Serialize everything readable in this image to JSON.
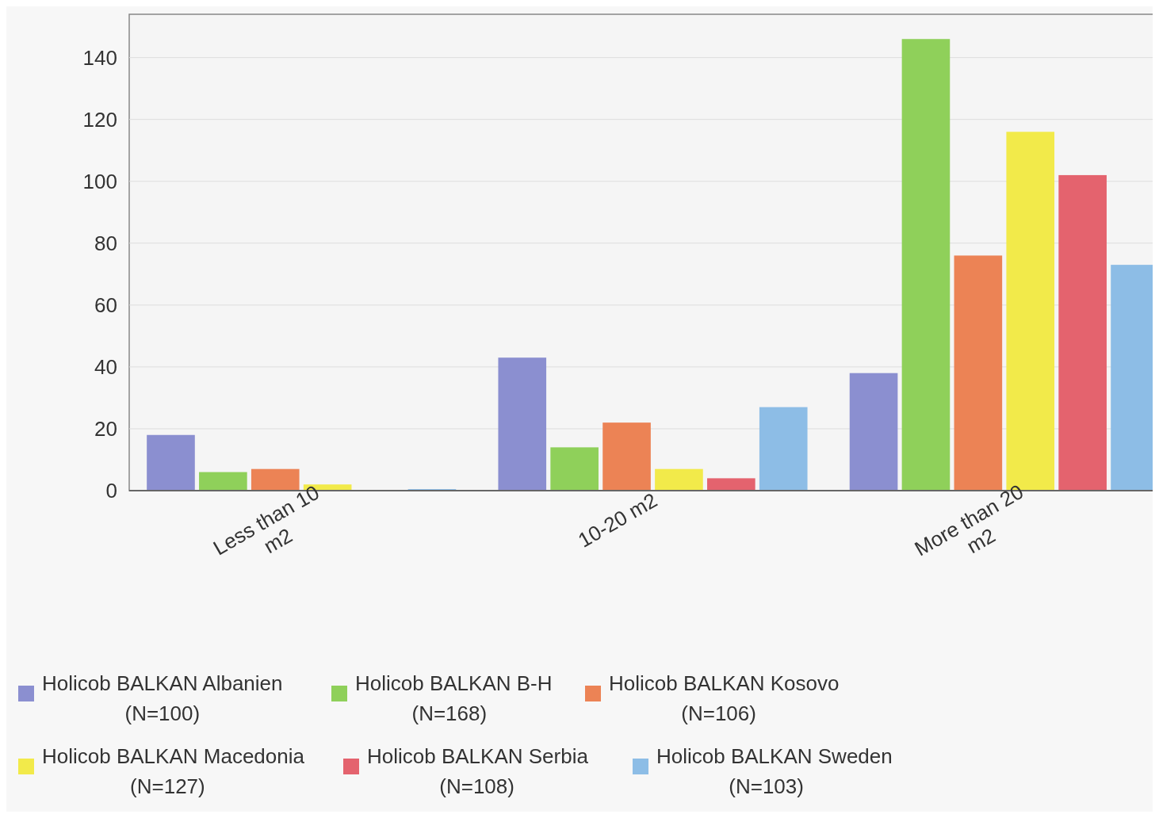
{
  "chart_data": {
    "type": "bar",
    "categories": [
      "Less than 10 m2",
      "10-20 m2",
      "More than 20 m2"
    ],
    "series": [
      {
        "name": "Holicob BALKAN Albanien (N=100)",
        "color": "#8b8fd0",
        "values": [
          18,
          43,
          38
        ]
      },
      {
        "name": "Holicob BALKAN B-H (N=168)",
        "color": "#8fd05a",
        "values": [
          6,
          14,
          146
        ]
      },
      {
        "name": "Holicob BALKAN Kosovo (N=106)",
        "color": "#ec8355",
        "values": [
          7,
          22,
          76
        ]
      },
      {
        "name": "Holicob BALKAN Macedonia (N=127)",
        "color": "#f2ea4a",
        "values": [
          2,
          7,
          116
        ]
      },
      {
        "name": "Holicob BALKAN Serbia (N=108)",
        "color": "#e4636e",
        "values": [
          0,
          4,
          102
        ]
      },
      {
        "name": "Holicob BALKAN Sweden (N=103)",
        "color": "#8dbde6",
        "values": [
          0.5,
          27,
          73
        ]
      }
    ],
    "ylim": [
      0,
      154
    ],
    "yticks": [
      0,
      20,
      40,
      60,
      80,
      100,
      120,
      140
    ],
    "grid": "y",
    "legend": "bottom"
  }
}
